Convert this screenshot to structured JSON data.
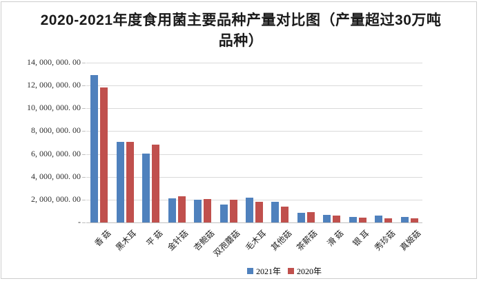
{
  "window": {
    "background": "#ffffff",
    "border_color": "#cdcdcd"
  },
  "chart_data": {
    "type": "bar",
    "title": "2020-2021年度食用菌主要品种产量对比图（产量超过30万吨品种）",
    "title_color": "#1a1a1a",
    "categories": [
      "香 菇",
      "黑木耳",
      "平 菇",
      "金针菇",
      "杏鲍菇",
      "双孢蘑菇",
      "毛木耳",
      "其他菇",
      "茶薪菇",
      "滑 菇",
      "银 耳",
      "秀珍菇",
      "真姬菇"
    ],
    "series": [
      {
        "name": "2021年",
        "color": "#4F81BD",
        "values": [
          12900000,
          7050000,
          6050000,
          2120000,
          2020000,
          1570000,
          2200000,
          1800000,
          820000,
          680000,
          500000,
          620000,
          510000
        ]
      },
      {
        "name": "2020年",
        "color": "#C0504D",
        "values": [
          11800000,
          7060000,
          6800000,
          2310000,
          2080000,
          2020000,
          1810000,
          1380000,
          930000,
          620000,
          430000,
          390000,
          350000
        ]
      }
    ],
    "xlabel": "",
    "ylabel": "",
    "ylim": [
      0,
      14000000
    ],
    "y_tick_step": 2000000,
    "y_tick_labels": [
      "14, 000, 000. 00",
      "12, 000, 000. 00",
      "10, 000, 000. 00",
      "8, 000, 000. 00",
      "6, 000, 000. 00",
      "4, 000, 000. 00",
      "2, 000, 000. 00",
      "-"
    ],
    "grid": true,
    "gridline_color": "#D9D9D9",
    "axis_line_color": "#BFBFBF",
    "tick_label_color": "#2e2e2e",
    "category_label_color": "#1f1f1f",
    "legend_position": "bottom"
  }
}
